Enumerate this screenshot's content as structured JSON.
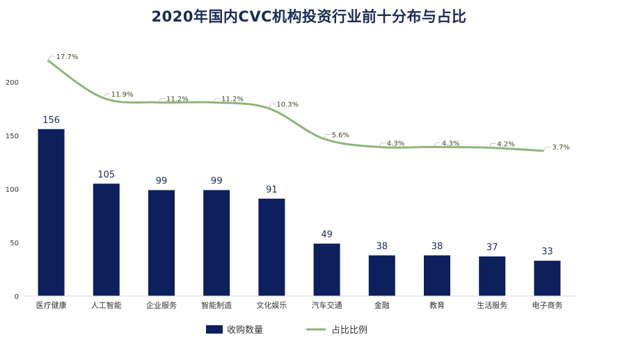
{
  "chart_data": {
    "type": "bar",
    "title": "2020年国内CVC机构投资行业前十分布与占比",
    "categories": [
      "医疗健康",
      "人工智能",
      "企业服务",
      "智能制造",
      "文化娱乐",
      "汽车交通",
      "金融",
      "教育",
      "生活服务",
      "电子商务"
    ],
    "series": [
      {
        "name": "收购数量",
        "type": "bar",
        "color": "#0d1f5c",
        "values": [
          156,
          105,
          99,
          99,
          91,
          49,
          38,
          38,
          37,
          33
        ],
        "labels": [
          "156",
          "105",
          "99",
          "99",
          "91",
          "49",
          "38",
          "38",
          "37",
          "33"
        ]
      },
      {
        "name": "占比比例",
        "type": "line",
        "color": "#8fb47a",
        "values": [
          17.7,
          11.9,
          11.2,
          11.2,
          10.3,
          5.6,
          4.3,
          4.3,
          4.2,
          3.7
        ],
        "labels": [
          "17.7%",
          "11.9%",
          "11.2%",
          "11.2%",
          "10.3%",
          "5.6%",
          "4.3%",
          "4.3%",
          "4.2%",
          "3.7%"
        ]
      }
    ],
    "y_ticks": [
      "0",
      "50",
      "100",
      "150",
      "200"
    ],
    "ylim": [
      0,
      200
    ],
    "grid": false,
    "legend_position": "bottom"
  }
}
